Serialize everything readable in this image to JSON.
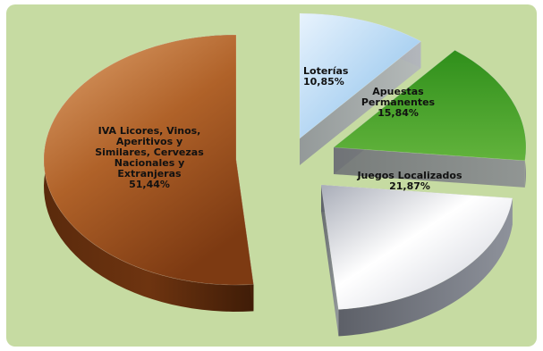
{
  "chart_data": {
    "type": "pie",
    "title": "",
    "slices": [
      {
        "label_lines": [
          "Loterías",
          "10,85%"
        ],
        "value": 10.85,
        "color": "#bcdcf6"
      },
      {
        "label_lines": [
          "Apuestas",
          "Permanentes",
          "15,84%"
        ],
        "value": 15.84,
        "color": "#2f8a1c"
      },
      {
        "label_lines": [
          "Juegos Localizados",
          "21,87%"
        ],
        "value": 21.87,
        "color": "#e4e6ee"
      },
      {
        "label_lines": [
          "IVA  Licores, Vinos,",
          "Aperitivos y",
          "Similares, Cervezas",
          "Nacionales y",
          "Extranjeras",
          "51,44%"
        ],
        "value": 51.44,
        "color": "#b76a33"
      }
    ]
  }
}
